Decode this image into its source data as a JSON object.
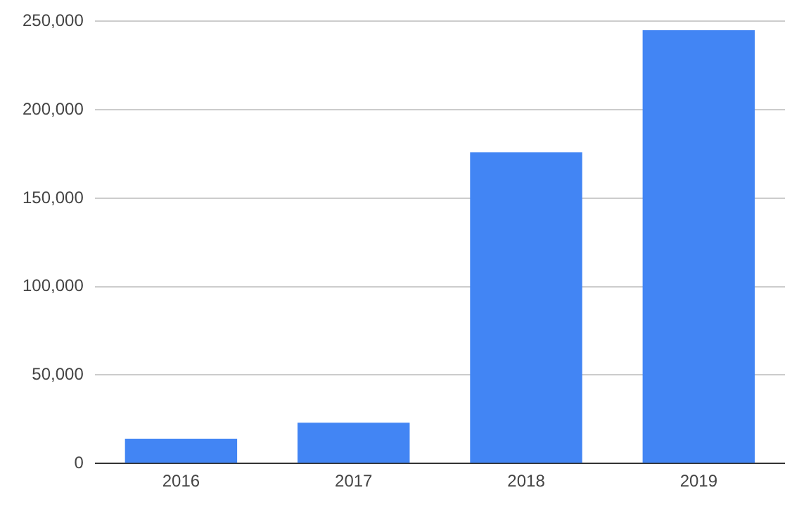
{
  "chart_data": {
    "type": "bar",
    "categories": [
      "2016",
      "2017",
      "2018",
      "2019"
    ],
    "values": [
      14000,
      23000,
      176000,
      245000
    ],
    "color": "#4285f4",
    "ylim": [
      0,
      250000
    ],
    "yticks": [
      0,
      {
        "value": 50000,
        "label": "50,000"
      },
      {
        "value": 100000,
        "label": "100,000"
      },
      {
        "value": 150000,
        "label": "150,000"
      },
      {
        "value": 200000,
        "label": "200,000"
      },
      {
        "value": 250000,
        "label": "250,000"
      }
    ],
    "grid": "y"
  }
}
